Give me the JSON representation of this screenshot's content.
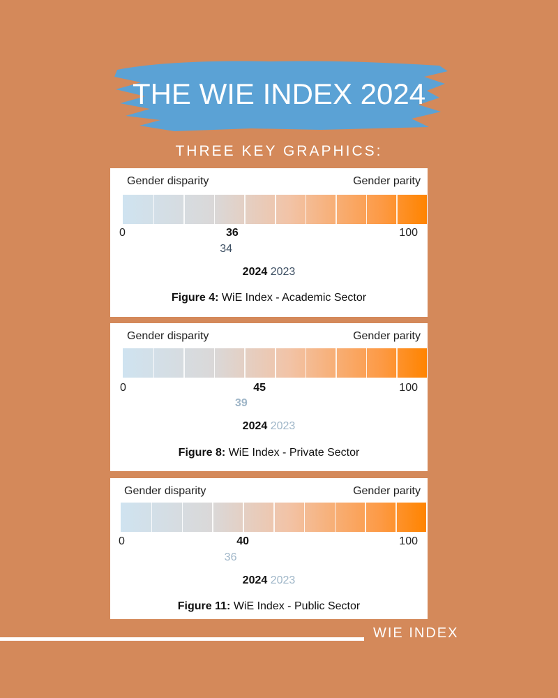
{
  "header": {
    "title": "THE WIE INDEX 2024",
    "subtitle": "THREE KEY GRAPHICS:",
    "brush_color": "#5ba2d5"
  },
  "colors": {
    "background": "#d4895a",
    "year_2023_text": [
      "#3d4f63",
      "#9fb6c8",
      "#9fb6c8"
    ]
  },
  "chart_data": [
    {
      "type": "bar",
      "title": "Figure 4: WiE Index - Academic Sector",
      "caption_prefix": "Figure 4:",
      "caption_text": "WiE Index - Academic Sector",
      "left_label": "Gender disparity",
      "right_label": "Gender parity",
      "scale_min": 0,
      "scale_max": 100,
      "series": [
        {
          "name": "2024",
          "values": [
            36
          ]
        },
        {
          "name": "2023",
          "values": [
            34
          ]
        }
      ]
    },
    {
      "type": "bar",
      "title": "Figure 8: WiE Index - Private Sector",
      "caption_prefix": "Figure 8:",
      "caption_text": "WiE Index - Private Sector",
      "left_label": "Gender disparity",
      "right_label": "Gender parity",
      "scale_min": 0,
      "scale_max": 100,
      "series": [
        {
          "name": "2024",
          "values": [
            45
          ]
        },
        {
          "name": "2023",
          "values": [
            39
          ]
        }
      ]
    },
    {
      "type": "bar",
      "title": "Figure 11: WiE Index - Public Sector",
      "caption_prefix": "Figure 11:",
      "caption_text": "WiE Index - Public Sector",
      "left_label": "Gender disparity",
      "right_label": "Gender parity",
      "scale_min": 0,
      "scale_max": 100,
      "series": [
        {
          "name": "2024",
          "values": [
            40
          ]
        },
        {
          "name": "2023",
          "values": [
            36
          ]
        }
      ]
    }
  ],
  "footer": {
    "label": "WIE INDEX"
  }
}
